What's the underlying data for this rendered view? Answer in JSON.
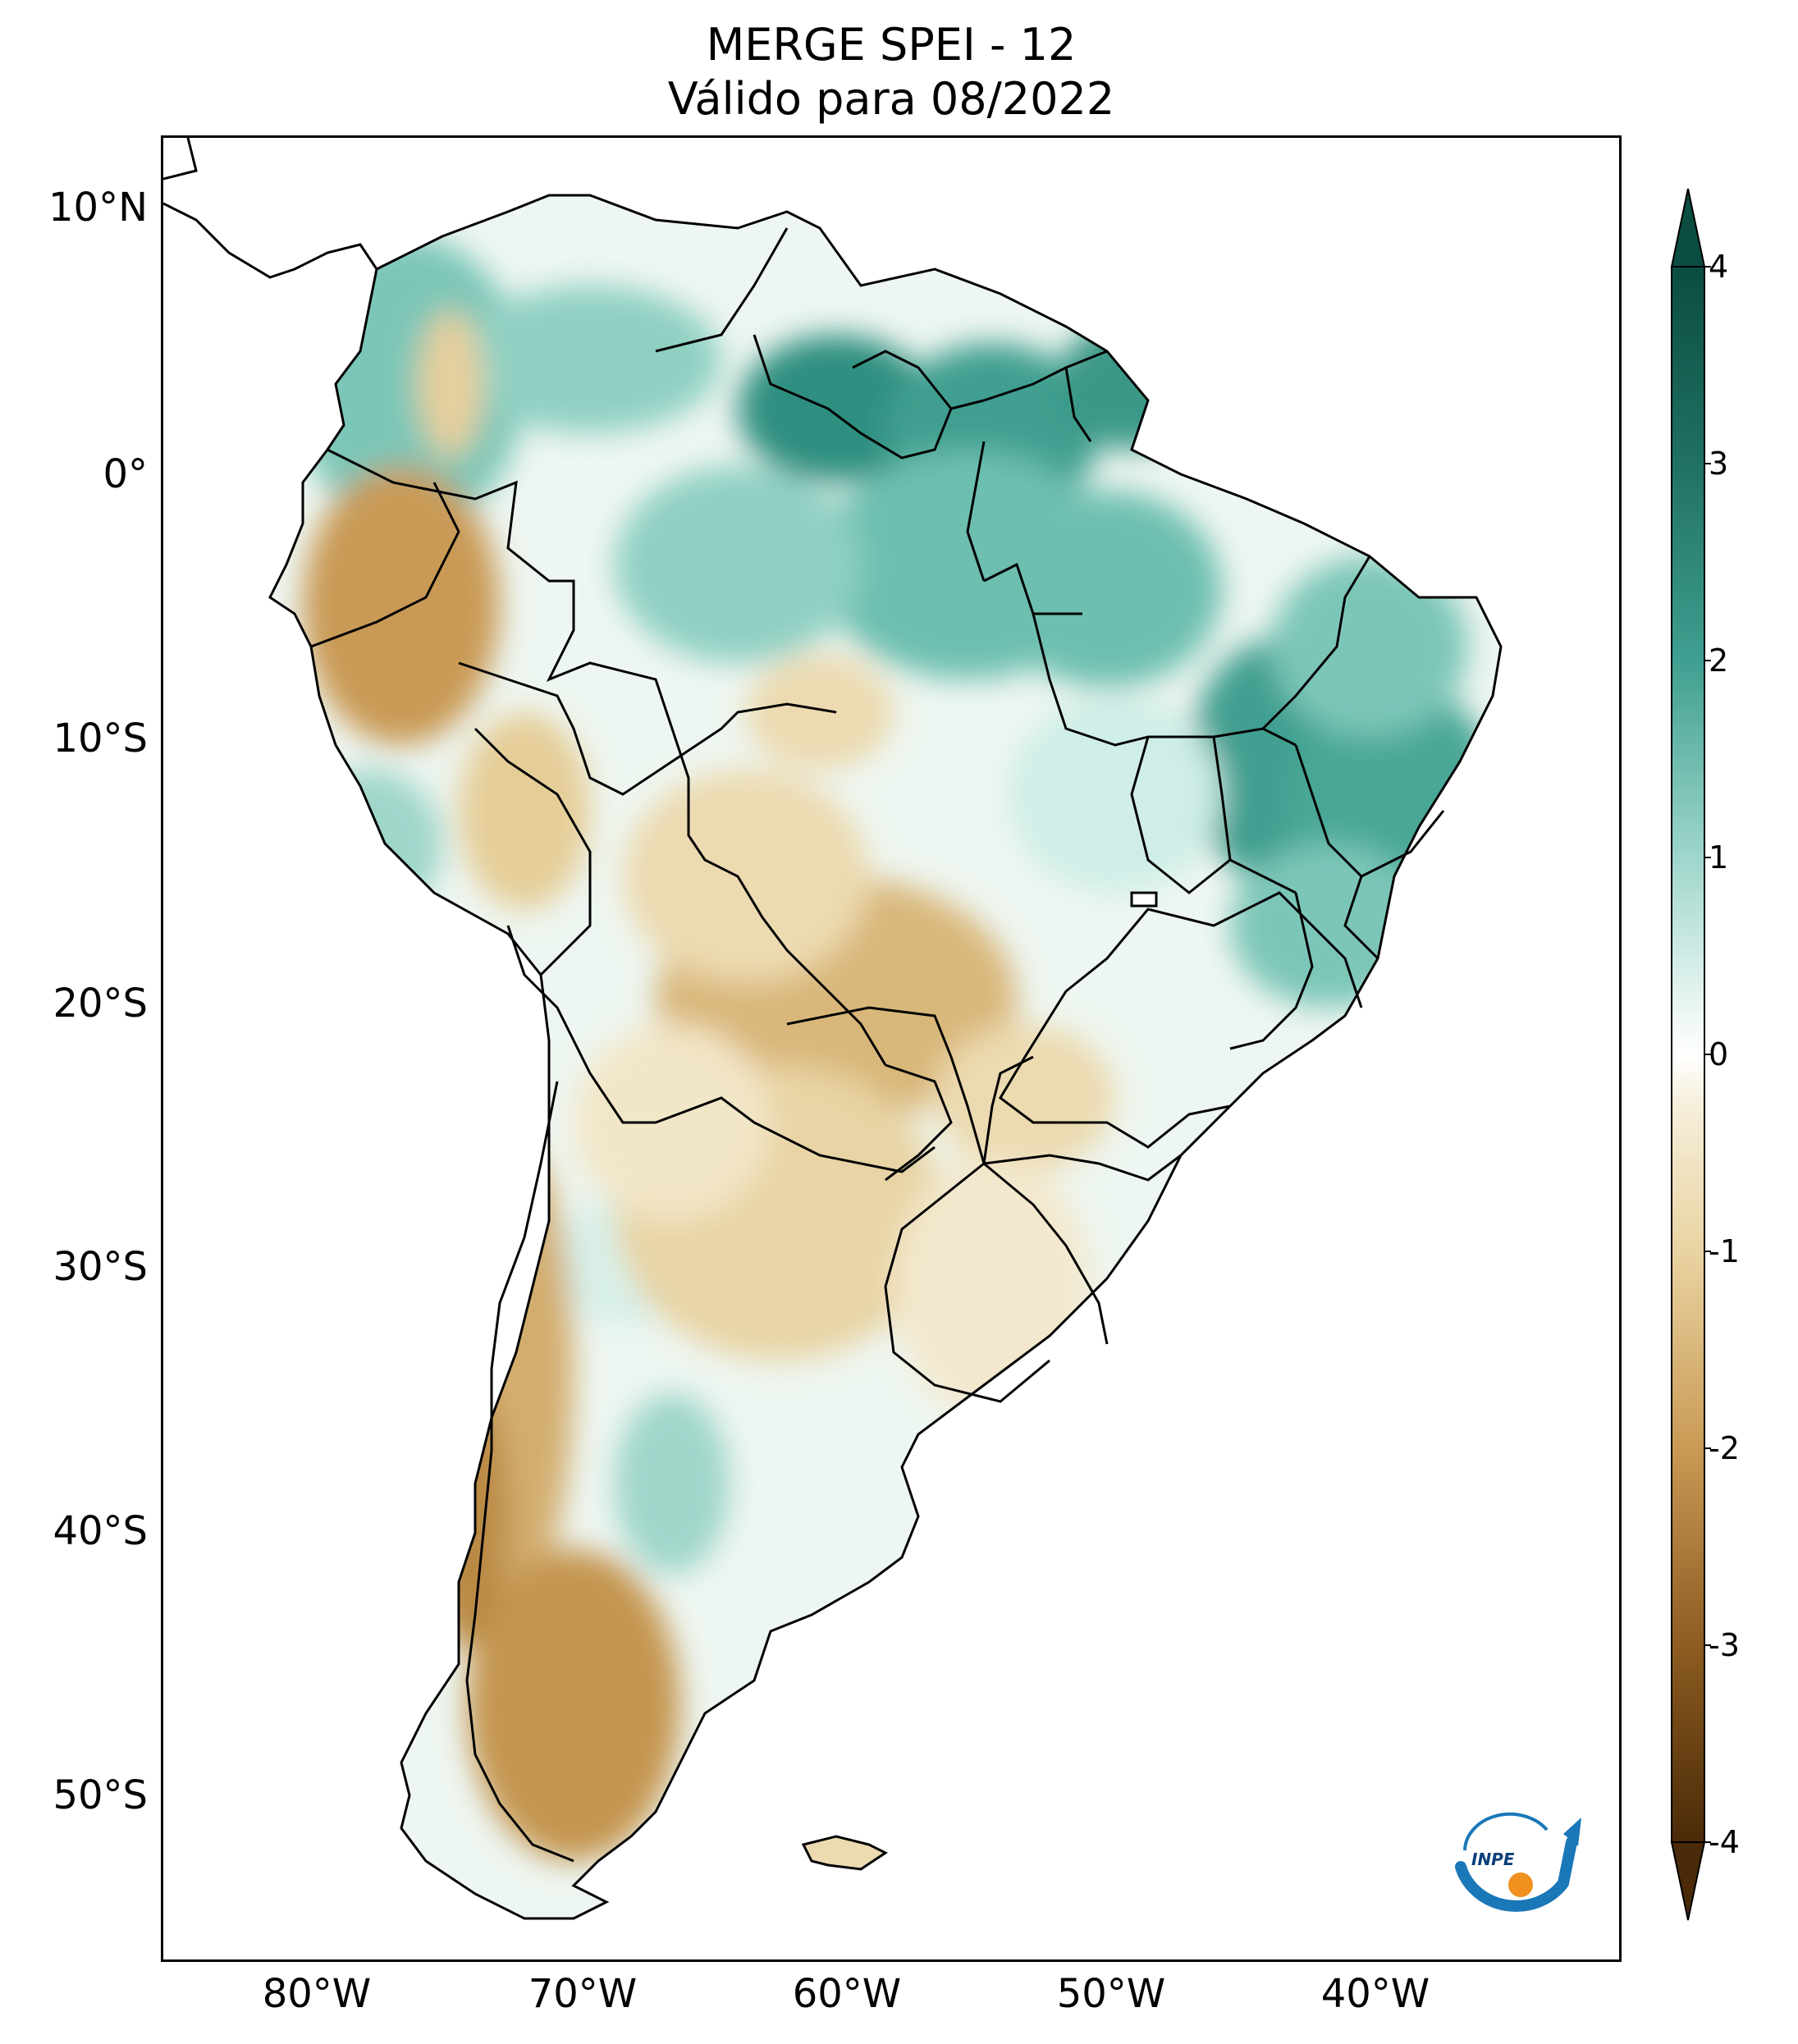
{
  "title": {
    "line1": "MERGE   SPEI - 12",
    "line2": "Válido para 08/2022"
  },
  "axes": {
    "lat_labels": [
      "10°N",
      "0°",
      "10°S",
      "20°S",
      "30°S",
      "40°S",
      "50°S"
    ],
    "lon_labels": [
      "80°W",
      "70°W",
      "60°W",
      "50°W",
      "40°W"
    ]
  },
  "colorbar": {
    "ticks": [
      "4",
      "3",
      "2",
      "1",
      "0",
      "-1",
      "-2",
      "-3",
      "-4"
    ],
    "min": -4,
    "max": 4,
    "colors": {
      "wet_max": "#0b4d40",
      "wet_mid": "#3f9f90",
      "wet_low": "#bfe6df",
      "neutral": "#ffffff",
      "dry_low": "#eedcb0",
      "dry_mid": "#c08a40",
      "dry_max": "#4a2a08"
    }
  },
  "logo": {
    "text": "INPE"
  }
}
